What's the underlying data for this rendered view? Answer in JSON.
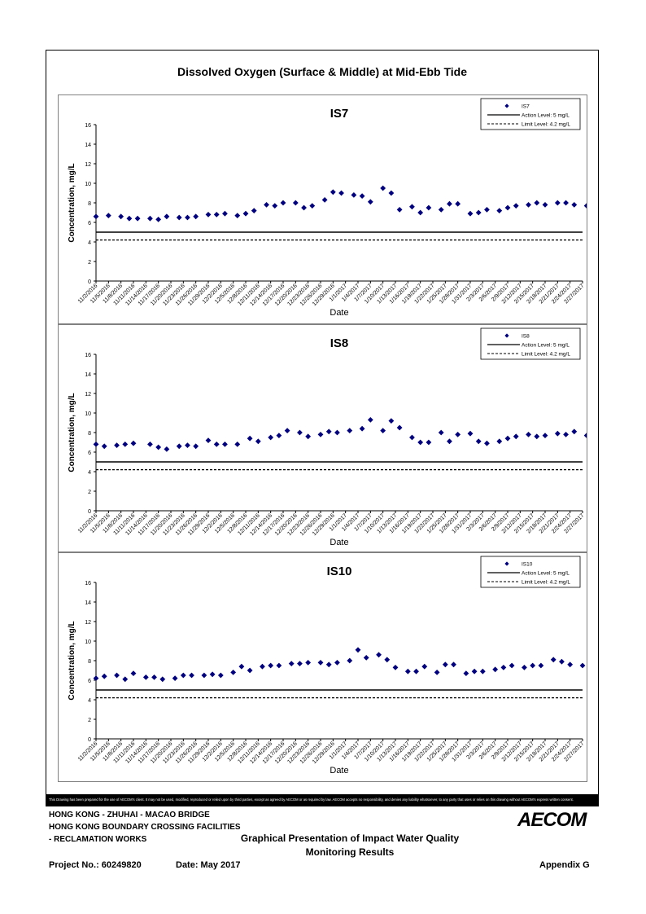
{
  "page": {
    "main_title": "Dissolved Oxygen (Surface & Middle) at Mid-Ebb Tide",
    "disclaimer": "This Drawing has been prepared for the use of AECOM's client. It may not be used, modified, reproduced or relied upon by third parties, except as agreed by AECOM or as required by law. AECOM accepts no responsibility, and denies any liability whatsoever, to any party that uses or relies on this drawing without AECOM's express written consent.",
    "project_line1": "HONG KONG - ZHUHAI - MACAO BRIDGE",
    "project_line2": "HONG KONG BOUNDARY CROSSING FACILITIES",
    "project_line3": "- RECLAMATION WORKS",
    "presentation_title1": "Graphical Presentation of Impact Water Quality",
    "presentation_title2": "Monitoring Results",
    "project_no": "Project No.: 60249820",
    "date": "Date: May 2017",
    "appendix": "Appendix G",
    "logo": "AECOM"
  },
  "colors": {
    "marker": "#00007f",
    "axis": "#000000",
    "frame": "#000000"
  },
  "chart_data": [
    {
      "type": "scatter",
      "title": "IS7",
      "xlabel": "Date",
      "ylabel": "Concentration, mg/L",
      "ylim": [
        0,
        16
      ],
      "yticks": [
        0,
        2,
        4,
        6,
        8,
        10,
        12,
        14,
        16
      ],
      "xlim": [
        "11/2/2016",
        "2/27/2017"
      ],
      "xtick_labels": [
        "11/2/2016",
        "11/5/2016",
        "11/8/2016",
        "11/11/2016",
        "11/14/2016",
        "11/17/2016",
        "11/20/2016",
        "11/23/2016",
        "11/26/2016",
        "11/29/2016",
        "12/2/2016",
        "12/5/2016",
        "12/8/2016",
        "12/11/2016",
        "12/14/2016",
        "12/17/2016",
        "12/20/2016",
        "12/23/2016",
        "12/26/2016",
        "12/29/2016",
        "1/1/2017",
        "1/4/2017",
        "1/7/2017",
        "1/10/2017",
        "1/13/2017",
        "1/16/2017",
        "1/19/2017",
        "1/22/2017",
        "1/25/2017",
        "1/28/2017",
        "1/31/2017",
        "2/3/2017",
        "2/6/2017",
        "2/9/2017",
        "2/12/2017",
        "2/15/2017",
        "2/18/2017",
        "2/21/2017",
        "2/24/2017",
        "2/27/2017"
      ],
      "legend_position": "top-right",
      "series": [
        {
          "name": "IS7",
          "x": [
            "11/2/2016",
            "11/5/2016",
            "11/8/2016",
            "11/10/2016",
            "11/12/2016",
            "11/15/2016",
            "11/17/2016",
            "11/19/2016",
            "11/22/2016",
            "11/24/2016",
            "11/26/2016",
            "11/29/2016",
            "12/1/2016",
            "12/3/2016",
            "12/6/2016",
            "12/8/2016",
            "12/10/2016",
            "12/13/2016",
            "12/15/2016",
            "12/17/2016",
            "12/20/2016",
            "12/22/2016",
            "12/24/2016",
            "12/27/2016",
            "12/29/2016",
            "12/31/2016",
            "1/3/2017",
            "1/5/2017",
            "1/7/2017",
            "1/10/2017",
            "1/12/2017",
            "1/14/2017",
            "1/17/2017",
            "1/19/2017",
            "1/21/2017",
            "1/24/2017",
            "1/26/2017",
            "1/28/2017",
            "1/31/2017",
            "2/2/2017",
            "2/4/2017",
            "2/7/2017",
            "2/9/2017",
            "2/11/2017",
            "2/14/2017",
            "2/16/2017",
            "2/18/2017",
            "2/21/2017",
            "2/23/2017",
            "2/25/2017",
            "2/28/2017"
          ],
          "y": [
            6.6,
            6.7,
            6.6,
            6.4,
            6.4,
            6.4,
            6.3,
            6.6,
            6.5,
            6.5,
            6.6,
            6.8,
            6.8,
            6.9,
            6.7,
            6.9,
            7.2,
            7.8,
            7.7,
            8.0,
            8.0,
            7.5,
            7.7,
            8.3,
            9.1,
            9.0,
            8.8,
            8.7,
            8.1,
            9.5,
            9.0,
            7.3,
            7.6,
            7.0,
            7.5,
            7.3,
            7.9,
            7.9,
            6.9,
            7.0,
            7.3,
            7.2,
            7.5,
            7.7,
            7.8,
            8.0,
            7.8,
            8.0,
            8.0,
            7.8,
            7.7
          ]
        },
        {
          "name": "Action Level: 5 mg/L",
          "value": 5
        },
        {
          "name": "Limit Level: 4.2 mg/L",
          "value": 4.2
        }
      ]
    },
    {
      "type": "scatter",
      "title": "IS8",
      "xlabel": "Date",
      "ylabel": "Concentration, mg/L",
      "ylim": [
        0,
        16
      ],
      "yticks": [
        0,
        2,
        4,
        6,
        8,
        10,
        12,
        14,
        16
      ],
      "xlim": [
        "11/2/2016",
        "2/27/2017"
      ],
      "xtick_labels": [
        "11/2/2016",
        "11/5/2016",
        "11/8/2016",
        "11/11/2016",
        "11/14/2016",
        "11/17/2016",
        "11/20/2016",
        "11/23/2016",
        "11/26/2016",
        "11/29/2016",
        "12/2/2016",
        "12/5/2016",
        "12/8/2016",
        "12/11/2016",
        "12/14/2016",
        "12/17/2016",
        "12/20/2016",
        "12/23/2016",
        "12/26/2016",
        "12/29/2016",
        "1/1/2017",
        "1/4/2017",
        "1/7/2017",
        "1/10/2017",
        "1/13/2017",
        "1/16/2017",
        "1/19/2017",
        "1/22/2017",
        "1/25/2017",
        "1/28/2017",
        "1/31/2017",
        "2/3/2017",
        "2/6/2017",
        "2/9/2017",
        "2/12/2017",
        "2/15/2017",
        "2/18/2017",
        "2/21/2017",
        "2/24/2017",
        "2/27/2017"
      ],
      "legend_position": "top-right",
      "series": [
        {
          "name": "IS8",
          "x": [
            "11/2/2016",
            "11/4/2016",
            "11/7/2016",
            "11/9/2016",
            "11/11/2016",
            "11/15/2016",
            "11/17/2016",
            "11/19/2016",
            "11/22/2016",
            "11/24/2016",
            "11/26/2016",
            "11/29/2016",
            "12/1/2016",
            "12/3/2016",
            "12/6/2016",
            "12/9/2016",
            "12/11/2016",
            "12/14/2016",
            "12/16/2016",
            "12/18/2016",
            "12/21/2016",
            "12/23/2016",
            "12/26/2016",
            "12/28/2016",
            "12/30/2016",
            "1/2/2017",
            "1/5/2017",
            "1/7/2017",
            "1/10/2017",
            "1/12/2017",
            "1/14/2017",
            "1/17/2017",
            "1/19/2017",
            "1/21/2017",
            "1/24/2017",
            "1/26/2017",
            "1/28/2017",
            "1/31/2017",
            "2/2/2017",
            "2/4/2017",
            "2/7/2017",
            "2/9/2017",
            "2/11/2017",
            "2/14/2017",
            "2/16/2017",
            "2/18/2017",
            "2/21/2017",
            "2/23/2017",
            "2/25/2017",
            "2/28/2017"
          ],
          "y": [
            6.8,
            6.6,
            6.7,
            6.8,
            6.9,
            6.8,
            6.5,
            6.3,
            6.6,
            6.7,
            6.6,
            7.2,
            6.8,
            6.8,
            6.8,
            7.4,
            7.1,
            7.5,
            7.7,
            8.2,
            8.0,
            7.6,
            7.8,
            8.1,
            8.0,
            8.2,
            8.4,
            9.3,
            8.2,
            9.2,
            8.5,
            7.5,
            7.0,
            7.0,
            8.0,
            7.1,
            7.8,
            7.9,
            7.1,
            6.9,
            7.1,
            7.4,
            7.6,
            7.8,
            7.6,
            7.7,
            7.9,
            7.8,
            8.1,
            7.7
          ]
        },
        {
          "name": "Action Level: 5 mg/L",
          "value": 5
        },
        {
          "name": "Limit Level: 4.2 mg/L",
          "value": 4.2
        }
      ]
    },
    {
      "type": "scatter",
      "title": "IS10",
      "xlabel": "Date",
      "ylabel": "Concentration, mg/L",
      "ylim": [
        0,
        16
      ],
      "yticks": [
        0,
        2,
        4,
        6,
        8,
        10,
        12,
        14,
        16
      ],
      "xlim": [
        "11/2/2016",
        "2/27/2017"
      ],
      "xtick_labels": [
        "11/2/2016",
        "11/5/2016",
        "11/8/2016",
        "11/11/2016",
        "11/14/2016",
        "11/17/2016",
        "11/20/2016",
        "11/23/2016",
        "11/26/2016",
        "11/29/2016",
        "12/2/2016",
        "12/5/2016",
        "12/8/2016",
        "12/11/2016",
        "12/14/2016",
        "12/17/2016",
        "12/20/2016",
        "12/23/2016",
        "12/26/2016",
        "12/29/2016",
        "1/1/2017",
        "1/4/2017",
        "1/7/2017",
        "1/10/2017",
        "1/13/2017",
        "1/16/2017",
        "1/19/2017",
        "1/22/2017",
        "1/25/2017",
        "1/28/2017",
        "1/31/2017",
        "2/3/2017",
        "2/6/2017",
        "2/9/2017",
        "2/12/2017",
        "2/15/2017",
        "2/18/2017",
        "2/21/2017",
        "2/24/2017",
        "2/27/2017"
      ],
      "legend_position": "top-right",
      "series": [
        {
          "name": "IS10",
          "x": [
            "11/2/2016",
            "11/4/2016",
            "11/7/2016",
            "11/9/2016",
            "11/11/2016",
            "11/14/2016",
            "11/16/2016",
            "11/18/2016",
            "11/21/2016",
            "11/23/2016",
            "11/25/2016",
            "11/28/2016",
            "11/30/2016",
            "12/2/2016",
            "12/5/2016",
            "12/7/2016",
            "12/9/2016",
            "12/12/2016",
            "12/14/2016",
            "12/16/2016",
            "12/19/2016",
            "12/21/2016",
            "12/23/2016",
            "12/26/2016",
            "12/28/2016",
            "12/30/2016",
            "1/2/2017",
            "1/4/2017",
            "1/6/2017",
            "1/9/2017",
            "1/11/2017",
            "1/13/2017",
            "1/16/2017",
            "1/18/2017",
            "1/20/2017",
            "1/23/2017",
            "1/25/2017",
            "1/27/2017",
            "1/30/2017",
            "2/1/2017",
            "2/3/2017",
            "2/6/2017",
            "2/8/2017",
            "2/10/2017",
            "2/13/2017",
            "2/15/2017",
            "2/17/2017",
            "2/20/2017",
            "2/22/2017",
            "2/24/2017",
            "2/27/2017"
          ],
          "y": [
            6.2,
            6.4,
            6.5,
            6.1,
            6.7,
            6.3,
            6.3,
            6.1,
            6.2,
            6.5,
            6.5,
            6.5,
            6.6,
            6.5,
            6.8,
            7.4,
            7.0,
            7.4,
            7.5,
            7.5,
            7.7,
            7.7,
            7.8,
            7.8,
            7.6,
            7.8,
            8.0,
            9.1,
            8.3,
            8.6,
            8.1,
            7.3,
            6.9,
            6.9,
            7.4,
            6.8,
            7.6,
            7.6,
            6.7,
            6.9,
            6.9,
            7.1,
            7.3,
            7.5,
            7.3,
            7.5,
            7.5,
            8.1,
            7.9,
            7.6,
            7.5
          ]
        },
        {
          "name": "Action Level: 5 mg/L",
          "value": 5
        },
        {
          "name": "Limit Level: 4.2 mg/L",
          "value": 4.2
        }
      ]
    }
  ]
}
